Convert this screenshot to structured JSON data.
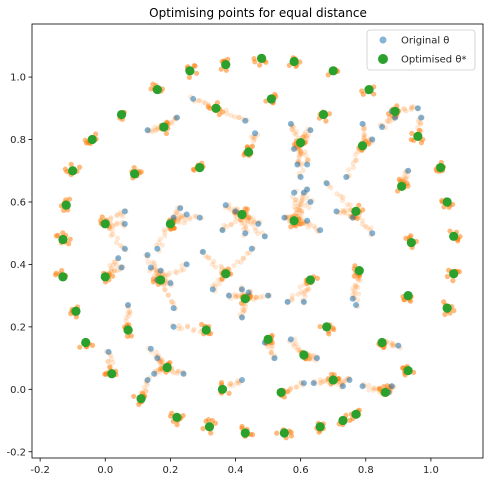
{
  "chart_data": {
    "type": "scatter",
    "title": "Optimising points for equal distance",
    "xlabel": "",
    "ylabel": "",
    "xlim": [
      -0.225,
      1.16
    ],
    "ylim": [
      -0.22,
      1.17
    ],
    "xticks": [
      -0.2,
      0.0,
      0.2,
      0.4,
      0.6,
      0.8,
      1.0
    ],
    "yticks": [
      -0.2,
      0.0,
      0.2,
      0.4,
      0.6,
      0.8,
      1.0
    ],
    "grid": false,
    "legend_position": "top-right",
    "legend": [
      {
        "label": "Original θ",
        "color": "#1f77b4"
      },
      {
        "label": "Optimised θ*",
        "color": "#2ca02c"
      }
    ],
    "colors": {
      "original": "#1f77b4",
      "trajectory": "#ff7f0e",
      "optimised": "#2ca02c"
    },
    "series": [
      {
        "name": "Original θ",
        "points": [
          [
            0.27,
            0.93
          ],
          [
            0.22,
            0.87
          ],
          [
            0.13,
            0.83
          ],
          [
            0.43,
            0.86
          ],
          [
            0.46,
            0.82
          ],
          [
            0.57,
            0.85
          ],
          [
            0.63,
            0.83
          ],
          [
            0.58,
            0.77
          ],
          [
            0.59,
            0.72
          ],
          [
            0.62,
            0.72
          ],
          [
            0.6,
            0.68
          ],
          [
            0.62,
            0.64
          ],
          [
            0.61,
            0.63
          ],
          [
            0.58,
            0.63
          ],
          [
            0.63,
            0.6
          ],
          [
            0.74,
            0.68
          ],
          [
            0.79,
            0.85
          ],
          [
            0.85,
            0.84
          ],
          [
            0.88,
            0.89
          ],
          [
            0.89,
            0.87
          ],
          [
            0.93,
            0.7
          ],
          [
            0.71,
            0.57
          ],
          [
            0.76,
            0.55
          ],
          [
            0.82,
            0.5
          ],
          [
            0.66,
            0.51
          ],
          [
            0.47,
            0.53
          ],
          [
            0.45,
            0.45
          ],
          [
            0.4,
            0.57
          ],
          [
            0.36,
            0.51
          ],
          [
            0.43,
            0.5
          ],
          [
            0.23,
            0.58
          ],
          [
            0.21,
            0.55
          ],
          [
            0.25,
            0.56
          ],
          [
            0.29,
            0.55
          ],
          [
            0.06,
            0.57
          ],
          [
            0.06,
            0.53
          ],
          [
            0.06,
            0.45
          ],
          [
            0.04,
            0.42
          ],
          [
            0.05,
            0.39
          ],
          [
            0.13,
            0.43
          ],
          [
            0.14,
            0.39
          ],
          [
            0.16,
            0.45
          ],
          [
            0.25,
            0.4
          ],
          [
            0.3,
            0.44
          ],
          [
            0.17,
            0.38
          ],
          [
            0.16,
            0.35
          ],
          [
            0.2,
            0.34
          ],
          [
            0.33,
            0.32
          ],
          [
            0.38,
            0.3
          ],
          [
            0.42,
            0.32
          ],
          [
            0.44,
            0.31
          ],
          [
            0.5,
            0.3
          ],
          [
            0.61,
            0.28
          ],
          [
            0.56,
            0.28
          ],
          [
            0.76,
            0.29
          ],
          [
            0.77,
            0.27
          ],
          [
            0.07,
            0.27
          ],
          [
            0.21,
            0.26
          ],
          [
            0.21,
            0.2
          ],
          [
            0.01,
            0.12
          ],
          [
            0.14,
            0.13
          ],
          [
            0.16,
            0.1
          ],
          [
            0.15,
            0.05
          ],
          [
            0.13,
            0.03
          ],
          [
            0.24,
            0.05
          ],
          [
            0.42,
            0.03
          ],
          [
            0.52,
            0.1
          ],
          [
            0.49,
            0.15
          ],
          [
            0.57,
            0.16
          ],
          [
            0.65,
            0.1
          ],
          [
            0.64,
            0.02
          ],
          [
            0.61,
            0.02
          ],
          [
            0.73,
            0.01
          ],
          [
            0.75,
            0.03
          ],
          [
            0.79,
            0.01
          ],
          [
            0.87,
            -0.01
          ],
          [
            0.88,
            0.01
          ],
          [
            0.9,
            0.14
          ],
          [
            0.96,
            0.9
          ],
          [
            0.97,
            0.87
          ],
          [
            0.82,
            0.8
          ],
          [
            0.62,
            0.54
          ],
          [
            0.49,
            0.49
          ],
          [
            0.37,
            0.59
          ],
          [
            0.42,
            0.23
          ],
          [
            0.55,
            0.55
          ],
          [
            0.68,
            0.66
          ]
        ]
      },
      {
        "name": "Optimised θ*",
        "points": [
          [
            0.26,
            1.02
          ],
          [
            0.37,
            1.04
          ],
          [
            0.48,
            1.06
          ],
          [
            0.58,
            1.05
          ],
          [
            0.7,
            1.02
          ],
          [
            0.16,
            0.96
          ],
          [
            0.81,
            0.96
          ],
          [
            0.05,
            0.88
          ],
          [
            0.89,
            0.89
          ],
          [
            -0.04,
            0.8
          ],
          [
            0.96,
            0.81
          ],
          [
            0.18,
            0.84
          ],
          [
            0.34,
            0.9
          ],
          [
            0.51,
            0.93
          ],
          [
            0.67,
            0.88
          ],
          [
            0.79,
            0.78
          ],
          [
            0.44,
            0.76
          ],
          [
            0.6,
            0.79
          ],
          [
            0.29,
            0.71
          ],
          [
            -0.1,
            0.7
          ],
          [
            1.03,
            0.71
          ],
          [
            0.09,
            0.69
          ],
          [
            0.91,
            0.65
          ],
          [
            -0.12,
            0.59
          ],
          [
            1.05,
            0.6
          ],
          [
            0.42,
            0.56
          ],
          [
            0.58,
            0.54
          ],
          [
            0.77,
            0.57
          ],
          [
            0.0,
            0.53
          ],
          [
            0.2,
            0.53
          ],
          [
            -0.13,
            0.48
          ],
          [
            1.07,
            0.49
          ],
          [
            0.94,
            0.47
          ],
          [
            0.37,
            0.37
          ],
          [
            0.63,
            0.35
          ],
          [
            0.17,
            0.35
          ],
          [
            0.78,
            0.38
          ],
          [
            -0.13,
            0.36
          ],
          [
            1.07,
            0.37
          ],
          [
            0.0,
            0.36
          ],
          [
            0.43,
            0.29
          ],
          [
            0.93,
            0.3
          ],
          [
            -0.09,
            0.25
          ],
          [
            1.05,
            0.26
          ],
          [
            0.07,
            0.19
          ],
          [
            0.31,
            0.19
          ],
          [
            0.68,
            0.2
          ],
          [
            0.5,
            0.16
          ],
          [
            0.85,
            0.15
          ],
          [
            -0.06,
            0.15
          ],
          [
            0.19,
            0.07
          ],
          [
            0.61,
            0.11
          ],
          [
            0.93,
            0.06
          ],
          [
            0.02,
            0.05
          ],
          [
            0.36,
            0.0
          ],
          [
            0.54,
            -0.01
          ],
          [
            0.86,
            -0.01
          ],
          [
            0.11,
            -0.03
          ],
          [
            0.7,
            0.03
          ],
          [
            0.22,
            -0.09
          ],
          [
            0.77,
            -0.08
          ],
          [
            0.32,
            -0.12
          ],
          [
            0.43,
            -0.14
          ],
          [
            0.55,
            -0.14
          ],
          [
            0.66,
            -0.12
          ],
          [
            0.73,
            -0.1
          ]
        ]
      }
    ]
  }
}
